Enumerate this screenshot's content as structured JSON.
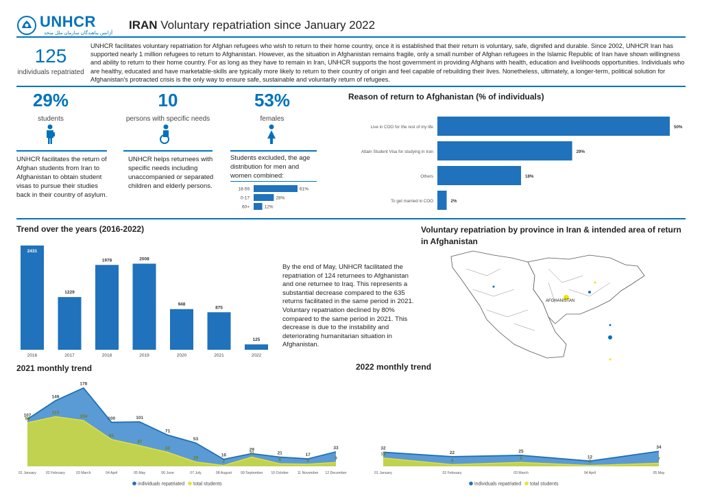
{
  "header": {
    "org": "UNHCR",
    "org_sub": "آژانس پناهندگان سازمان ملل متحد",
    "title_bold": "IRAN",
    "title_rest": " Voluntary repatriation since January 2022"
  },
  "summary": {
    "count": "125",
    "count_label": "individuals repatriated",
    "intro": "UNHCR facilitates voluntary repatriation for Afghan refugees who wish to return to their home country, once it is established that their return is voluntary, safe, dignifed and durable. Since 2002, UNHCR Iran has supported nearly 1 million refugees to return to Afghanistan. However, as the situation in Afghanistan remains fragile, only a small number of Afghan refugees in the Islamic Republic of Iran have shown willingness and ability to return to their home country. For as long as they have to remain in Iran, UNHCR supports the host government in providing Afghans with health, education and livelihoods opportunities. Individuals who are healthy, educated and have marketable-skills are typically more likely to return to their country of origin and feel capable of rebuilding their lives. Nonetheless, ultimately, a longer-term, political solution for Afghanistan's protracted crisis is the only way to ensure safe, sustainable and voluntarily return of refugees."
  },
  "stats": [
    {
      "value": "29%",
      "label": "students",
      "text": "UNHCR facilitates the return of Afghan students from Iran to Afghanistan to obtain student visas to pursue their studies back in their country of asylum."
    },
    {
      "value": "10",
      "label": "persons with specific needs",
      "text": "UNHCR helps returnees with specific needs including unaccompanied or separated children and elderly persons."
    },
    {
      "value": "53%",
      "label": "females",
      "text": "Students excluded, the age distribution for men and women combined:"
    }
  ],
  "age_chart": {
    "bars": [
      {
        "label": "18-59",
        "value": 61,
        "text": "61%"
      },
      {
        "label": "0-17",
        "value": 28,
        "text": "28%"
      },
      {
        "label": "60+",
        "value": 12,
        "text": "12%"
      }
    ]
  },
  "reason_chart": {
    "title": "Reason of return to Afghanistan (% of individuals)",
    "bars": [
      {
        "label": "Live in COO for the rest of my life",
        "value": 50,
        "text": "50%"
      },
      {
        "label": "Attain Student Visa for studying in Iran",
        "value": 29,
        "text": "29%"
      },
      {
        "label": "Others",
        "value": 18,
        "text": "18%"
      },
      {
        "label": "To get married in COO",
        "value": 2,
        "text": "2%"
      }
    ]
  },
  "trend": {
    "title": "Trend over the years (2016-2022)",
    "text": "By the end of May, UNHCR facilitated the repatriation of 124 returnees to Afghanistan and one returnee to Iraq. This represents a substantial  decrease compared to the 635 returns facilitated in the same period in 2021. Voluntary repatriation declined by 80% compared to the same period in 2021. This decrease is due to the instability and deteriorating humanitarian situation in Afghanistan."
  },
  "map": {
    "title": "Voluntary repatriation by province in Iran & intended area of return in Afghanistan",
    "center_label": "AFGHANISTAN"
  },
  "chart_data": [
    {
      "type": "bar",
      "title": "Trend over the years (2016-2022)",
      "categories": [
        "2016",
        "2017",
        "2018",
        "2019",
        "2020",
        "2021",
        "2022"
      ],
      "values": [
        2431,
        1229,
        1978,
        2008,
        948,
        875,
        125
      ],
      "color": "#1f72bb"
    },
    {
      "type": "area",
      "title": "2021 monthly trend",
      "categories": [
        "01 January",
        "02 February",
        "03 March",
        "04 April",
        "05 May",
        "06 June",
        "07 July",
        "08 August",
        "09 September",
        "10 October",
        "11 November",
        "12 December"
      ],
      "series": [
        {
          "name": "individuals repatriated",
          "values": [
            107,
            149,
            178,
            100,
            101,
            71,
            53,
            16,
            29,
            21,
            17,
            33
          ],
          "color": "#5b9bd5"
        },
        {
          "name": "total students",
          "values": [
            99,
            113,
            104,
            61,
            47,
            32,
            10,
            2,
            21,
            6,
            5,
            9
          ],
          "color": "#c7d54a"
        }
      ],
      "legend": "bottom",
      "ylim": [
        0,
        190
      ]
    },
    {
      "type": "area",
      "title": "2022 monthly trend",
      "categories": [
        "01 January",
        "02 February",
        "03 March",
        "04 April",
        "05 May"
      ],
      "series": [
        {
          "name": "individuals repatriated",
          "values": [
            32,
            22,
            25,
            12,
            34
          ],
          "color": "#5b9bd5"
        },
        {
          "name": "total students",
          "values": [
            19,
            4,
            9,
            2,
            7
          ],
          "color": "#c7d54a"
        }
      ],
      "legend": "bottom",
      "ylim": [
        0,
        190
      ]
    }
  ]
}
